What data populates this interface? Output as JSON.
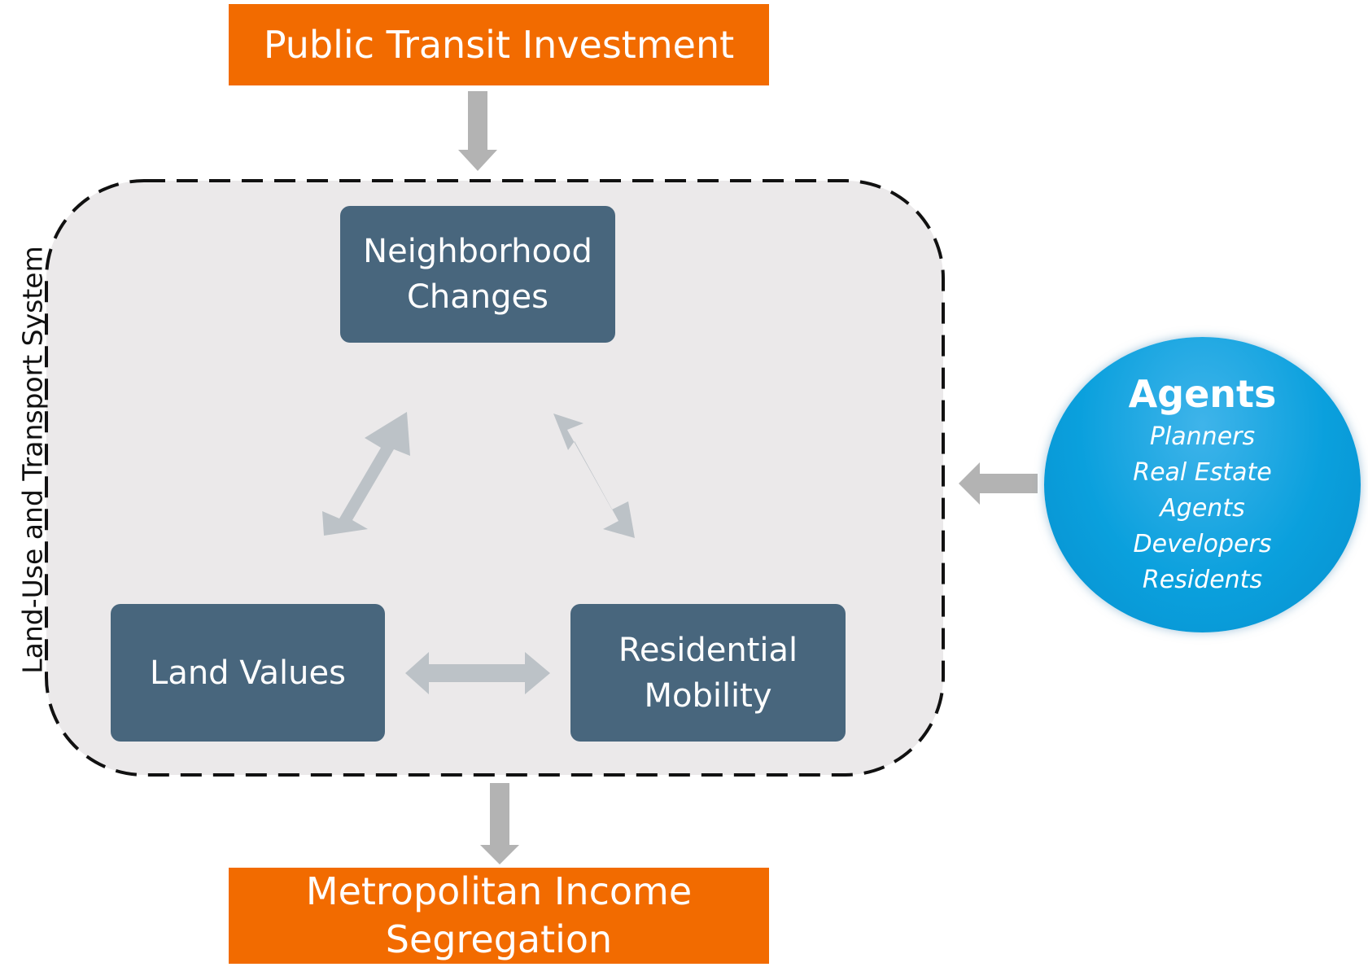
{
  "top": {
    "label": "Public Transit Investment"
  },
  "bottom": {
    "label_line1": "Metropolitan Income",
    "label_line2": "Segregation"
  },
  "system": {
    "label": "Land-Use and Transport System"
  },
  "nodes": {
    "neighborhood": {
      "line1": "Neighborhood",
      "line2": "Changes"
    },
    "land_values": {
      "line1": "Land Values"
    },
    "mobility": {
      "line1": "Residential",
      "line2": "Mobility"
    }
  },
  "agents": {
    "title": "Agents",
    "items": [
      "Planners",
      "Real Estate",
      "Agents",
      "Developers",
      "Residents"
    ]
  },
  "colors": {
    "orange": "#f26b00",
    "slate": "#48667d",
    "arrow_gray": "#b3b3b3",
    "arrow_lightgray": "#bcc2c7",
    "system_fill": "#ebe9ea",
    "agents_blue": "#0aa0dd"
  }
}
